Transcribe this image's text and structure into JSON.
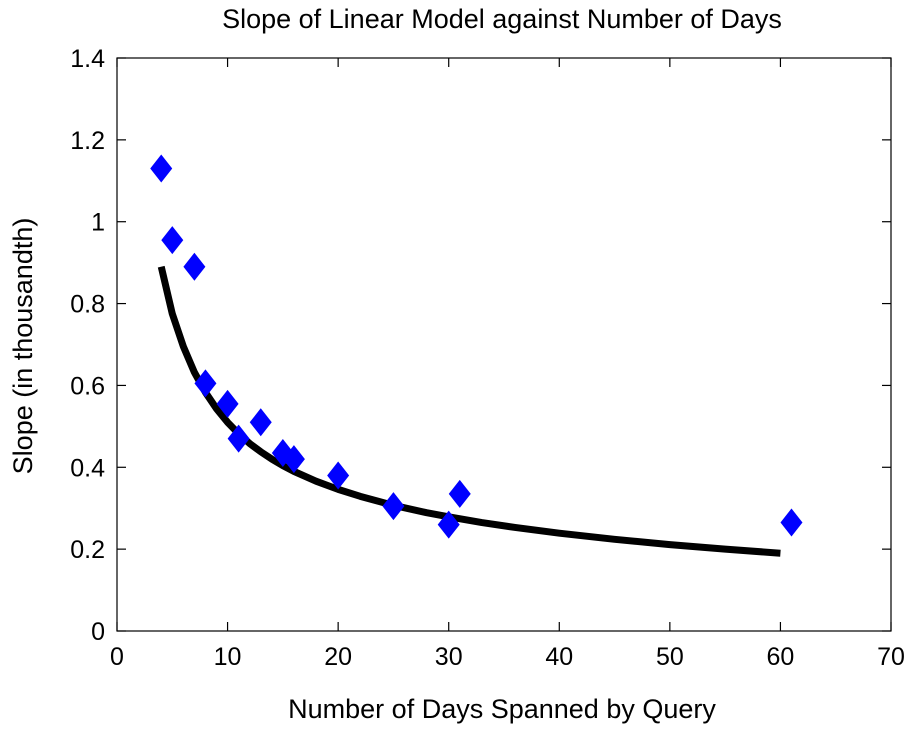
{
  "chart_data": {
    "type": "scatter",
    "title": "Slope of Linear Model against Number of Days",
    "xlabel": "Number of Days Spanned by Query",
    "ylabel": "Slope (in thousandth)",
    "xlim": [
      0,
      70
    ],
    "ylim": [
      0,
      1.4
    ],
    "xticks": [
      0,
      10,
      20,
      30,
      40,
      50,
      60,
      70
    ],
    "yticks": [
      0,
      0.2,
      0.4,
      0.6,
      0.8,
      1,
      1.2,
      1.4
    ],
    "xtick_labels": [
      "0",
      "10",
      "20",
      "30",
      "40",
      "50",
      "60",
      "70"
    ],
    "ytick_labels": [
      "0",
      "0.2",
      "0.4",
      "0.6",
      "0.8",
      "1",
      "1.2",
      "1.4"
    ],
    "grid": false,
    "series": [
      {
        "kind": "scatter",
        "marker": "diamond",
        "color": "#0000ff",
        "x": [
          4,
          5,
          7,
          8,
          10,
          11,
          13,
          15,
          16,
          20,
          25,
          30,
          31,
          61
        ],
        "y": [
          1.13,
          0.955,
          0.89,
          0.605,
          0.555,
          0.47,
          0.51,
          0.435,
          0.42,
          0.38,
          0.305,
          0.26,
          0.335,
          0.265
        ]
      },
      {
        "kind": "line",
        "color": "#000000",
        "x": [
          4,
          5,
          6,
          7,
          8,
          9,
          10,
          11,
          12,
          13,
          14,
          15,
          16,
          18,
          20,
          22,
          25,
          28,
          30,
          33,
          36,
          40,
          45,
          50,
          55,
          60
        ],
        "y": [
          0.89,
          0.775,
          0.695,
          0.632,
          0.583,
          0.543,
          0.51,
          0.482,
          0.458,
          0.438,
          0.42,
          0.404,
          0.39,
          0.366,
          0.346,
          0.329,
          0.307,
          0.289,
          0.279,
          0.265,
          0.253,
          0.239,
          0.224,
          0.211,
          0.2,
          0.19
        ]
      }
    ]
  }
}
